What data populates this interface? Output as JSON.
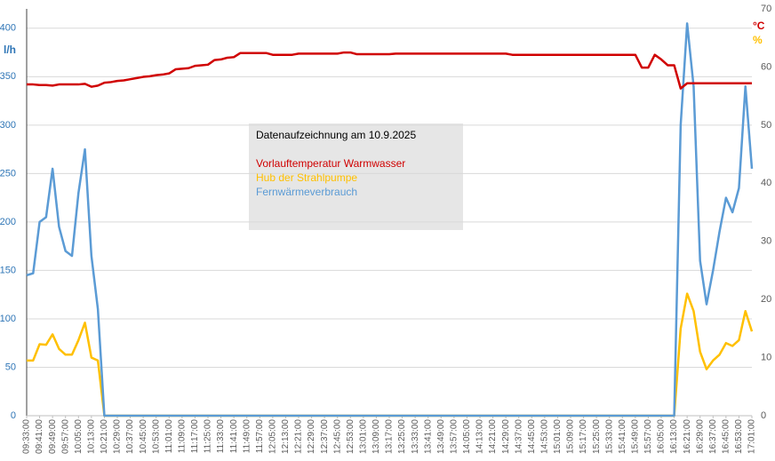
{
  "chart_data": {
    "type": "line",
    "annotation": "Datenaufzeichnung am 10.9.2025",
    "ylabel": "l/h",
    "y2labels": [
      "°C",
      "%"
    ],
    "categories": [
      "09:33:00",
      null,
      "09:41:00",
      null,
      "09:49:00",
      null,
      "09:57:00",
      null,
      "10:05:00",
      null,
      "10:13:00",
      null,
      "10:21:00",
      null,
      "10:29:00",
      null,
      "10:37:00",
      null,
      "10:45:00",
      null,
      "10:53:00",
      null,
      "11:01:00",
      null,
      "11:09:00",
      null,
      "11:17:00",
      null,
      "11:25:00",
      null,
      "11:33:00",
      null,
      "11:41:00",
      null,
      "11:49:00",
      null,
      "11:57:00",
      null,
      "12:05:00",
      null,
      "12:13:00",
      null,
      "12:21:00",
      null,
      "12:29:00",
      null,
      "12:37:00",
      null,
      "12:45:00",
      null,
      "12:53:00",
      null,
      "13:01:00",
      null,
      "13:09:00",
      null,
      "13:17:00",
      null,
      "13:25:00",
      null,
      "13:33:00",
      null,
      "13:41:00",
      null,
      "13:49:00",
      null,
      "13:57:00",
      null,
      "14:05:00",
      null,
      "14:13:00",
      null,
      "14:21:00",
      null,
      "14:29:00",
      null,
      "14:37:00",
      null,
      "14:45:00",
      null,
      "14:53:00",
      null,
      "15:01:00",
      null,
      "15:09:00",
      null,
      "15:17:00",
      null,
      "15:25:00",
      null,
      "15:33:00",
      null,
      "15:41:00",
      null,
      "15:49:00",
      null,
      "15:57:00",
      null,
      "16:05:00",
      null,
      "16:13:00",
      null,
      "16:21:00",
      null,
      "16:29:00",
      null,
      "16:37:00",
      null,
      "16:45:00",
      null,
      "16:53:00",
      null,
      "17:01:00"
    ],
    "series": [
      {
        "name": "Vorlauftemperatur Warmwasser",
        "color": "#d00000",
        "axis": "y2",
        "values": [
          57,
          57,
          56.9,
          56.9,
          56.8,
          57,
          57,
          57,
          57,
          57.1,
          56.6,
          56.8,
          57.3,
          57.4,
          57.6,
          57.7,
          57.9,
          58.1,
          58.3,
          58.4,
          58.6,
          58.7,
          58.9,
          59.6,
          59.7,
          59.8,
          60.2,
          60.3,
          60.4,
          61.2,
          61.3,
          61.6,
          61.7,
          62.4,
          62.4,
          62.4,
          62.4,
          62.4,
          62.1,
          62.1,
          62.1,
          62.1,
          62.3,
          62.3,
          62.3,
          62.3,
          62.3,
          62.3,
          62.3,
          62.5,
          62.5,
          62.2,
          62.2,
          62.2,
          62.2,
          62.2,
          62.2,
          62.3,
          62.3,
          62.3,
          62.3,
          62.3,
          62.3,
          62.3,
          62.3,
          62.3,
          62.3,
          62.3,
          62.3,
          62.3,
          62.3,
          62.3,
          62.3,
          62.3,
          62.3,
          62.1,
          62.1,
          62.1,
          62.1,
          62.1,
          62.1,
          62.1,
          62.1,
          62.1,
          62.1,
          62.1,
          62.1,
          62.1,
          62.1,
          62.1,
          62.1,
          62.1,
          62.1,
          62.1,
          62.1,
          59.9,
          59.9,
          62.1,
          61.3,
          60.3,
          60.3,
          56.3,
          57.2,
          57.2,
          57.2,
          57.2,
          57.2,
          57.2,
          57.2,
          57.2,
          57.2,
          57.2,
          57.2
        ]
      },
      {
        "name": "Hub der Strahlpumpe",
        "color": "#ffc000",
        "axis": "y2",
        "values": [
          9.5,
          9.5,
          12.3,
          12.2,
          14,
          11.5,
          10.5,
          10.5,
          13,
          16,
          10,
          9.5,
          0,
          0,
          0,
          0,
          0,
          0,
          0,
          0,
          0,
          0,
          0,
          0,
          0,
          0,
          0,
          0,
          0,
          0,
          0,
          0,
          0,
          0,
          0,
          0,
          0,
          0,
          0,
          0,
          0,
          0,
          0,
          0,
          0,
          0,
          0,
          0,
          0,
          0,
          0,
          0,
          0,
          0,
          0,
          0,
          0,
          0,
          0,
          0,
          0,
          0,
          0,
          0,
          0,
          0,
          0,
          0,
          0,
          0,
          0,
          0,
          0,
          0,
          0,
          0,
          0,
          0,
          0,
          0,
          0,
          0,
          0,
          0,
          0,
          0,
          0,
          0,
          0,
          0,
          0,
          0,
          0,
          0,
          0,
          0,
          0,
          0,
          0,
          0,
          0,
          15,
          21,
          18,
          11,
          8,
          9.5,
          10.5,
          12.5,
          12,
          13,
          18,
          14.5
        ]
      },
      {
        "name": "Fernwärmeverbrauch",
        "color": "#5b9bd5",
        "values": [
          145,
          147,
          200,
          205,
          255,
          195,
          170,
          165,
          230,
          275,
          165,
          110,
          0,
          0,
          0,
          0,
          0,
          0,
          0,
          0,
          0,
          0,
          0,
          0,
          0,
          0,
          0,
          0,
          0,
          0,
          0,
          0,
          0,
          0,
          0,
          0,
          0,
          0,
          0,
          0,
          0,
          0,
          0,
          0,
          0,
          0,
          0,
          0,
          0,
          0,
          0,
          0,
          0,
          0,
          0,
          0,
          0,
          0,
          0,
          0,
          0,
          0,
          0,
          0,
          0,
          0,
          0,
          0,
          0,
          0,
          0,
          0,
          0,
          0,
          0,
          0,
          0,
          0,
          0,
          0,
          0,
          0,
          0,
          0,
          0,
          0,
          0,
          0,
          0,
          0,
          0,
          0,
          0,
          0,
          0,
          0,
          0,
          0,
          0,
          0,
          0,
          300,
          405,
          340,
          160,
          115,
          150,
          190,
          225,
          210,
          235,
          340,
          255
        ]
      }
    ],
    "ylim": [
      0,
      420
    ],
    "yticks": [
      0,
      50,
      100,
      150,
      200,
      250,
      300,
      350,
      400
    ],
    "y2lim": [
      0,
      70
    ],
    "y2ticks": [
      0,
      10,
      20,
      30,
      40,
      50,
      60,
      70
    ],
    "grid": true
  }
}
